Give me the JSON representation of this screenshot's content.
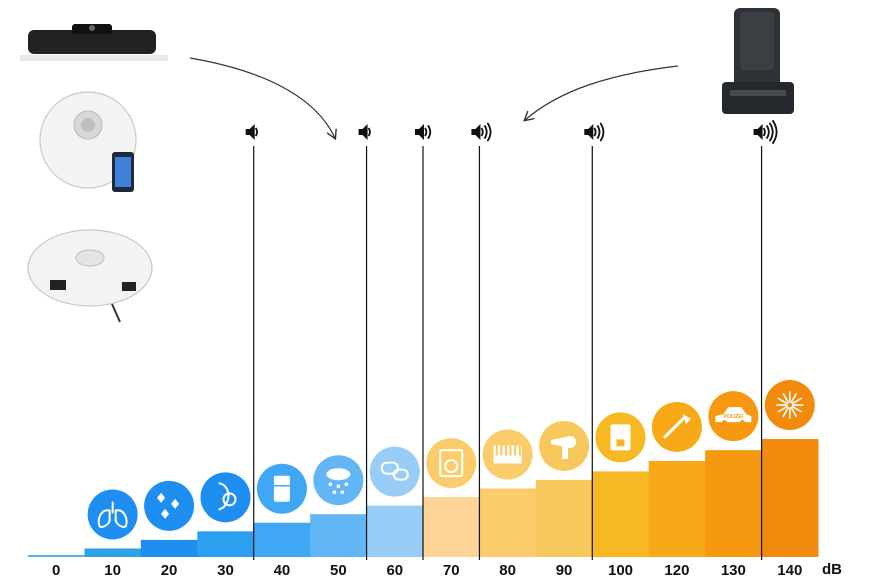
{
  "chart_data": {
    "type": "bar",
    "categories": [
      "0",
      "10",
      "20",
      "30",
      "40",
      "50",
      "60",
      "70",
      "80",
      "90",
      "100",
      "120",
      "130",
      "140"
    ],
    "values": [
      0,
      10,
      20,
      30,
      40,
      50,
      60,
      70,
      80,
      90,
      100,
      120,
      130,
      140
    ],
    "unit_label": "dB",
    "ylim": [
      0,
      140
    ],
    "grid": false,
    "legend": "none",
    "bar_colors": [
      "#54b6ea",
      "#2ea4e7",
      "#1e8ff0",
      "#2ba0f0",
      "#3fa7f4",
      "#62b6f6",
      "#98cdf7",
      "#fdd495",
      "#fbcc6b",
      "#f8c85c",
      "#f6b823",
      "#f7a917",
      "#f79910",
      "#f28a0d"
    ],
    "markers": [
      {
        "category": "30",
        "sound_level": 1
      },
      {
        "category": "50",
        "sound_level": 1
      },
      {
        "category": "60",
        "sound_level": 2
      },
      {
        "category": "70",
        "sound_level": 3
      },
      {
        "category": "90",
        "sound_level": 3
      },
      {
        "category": "130",
        "sound_level": 4
      }
    ],
    "icons": [
      {
        "category": "10",
        "name": "lungs-icon",
        "color": "#1e8ff0"
      },
      {
        "category": "20",
        "name": "leaves-icon",
        "color": "#1e8ff0"
      },
      {
        "category": "30",
        "name": "whisper-icon",
        "color": "#1e8ff0"
      },
      {
        "category": "40",
        "name": "fridge-icon",
        "color": "#3fa7f4"
      },
      {
        "category": "50",
        "name": "rain-icon",
        "color": "#62b6f6"
      },
      {
        "category": "60",
        "name": "conversation-icon",
        "color": "#98cdf7"
      },
      {
        "category": "70",
        "name": "washing-machine-icon",
        "color": "#fbcc6b"
      },
      {
        "category": "80",
        "name": "piano-icon",
        "color": "#fbcc6b"
      },
      {
        "category": "90",
        "name": "hair-dryer-icon",
        "color": "#f8c85c"
      },
      {
        "category": "100",
        "name": "coffee-machine-icon",
        "color": "#f6b823"
      },
      {
        "category": "120",
        "name": "trombone-icon",
        "color": "#f7a917"
      },
      {
        "category": "130",
        "name": "police-car-icon",
        "color": "#f79910",
        "text": "POLIZEI"
      },
      {
        "category": "140",
        "name": "fireworks-icon",
        "color": "#f28a0d"
      }
    ],
    "products": [
      {
        "name": "robot-vacuum-dark-image"
      },
      {
        "name": "robot-vacuum-white-app-image"
      },
      {
        "name": "robot-vacuum-white-image"
      },
      {
        "name": "auto-empty-station-image"
      }
    ]
  }
}
